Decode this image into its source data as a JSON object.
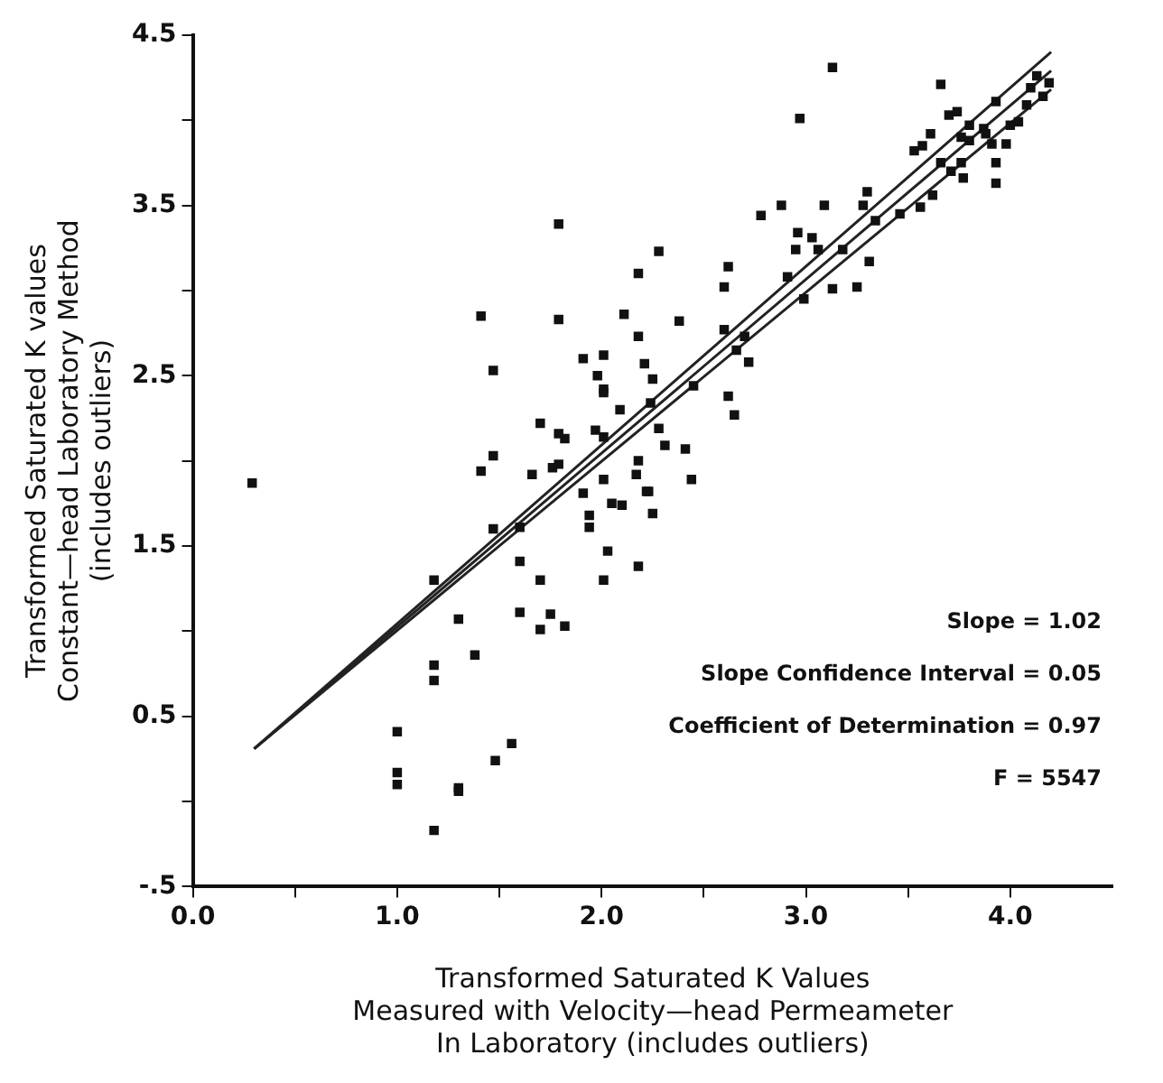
{
  "chart_data": {
    "type": "scatter",
    "xlabel": "Transformed Saturated K Values\nMeasured with Velocity—head Permeameter\nIn Laboratory (includes outliers)",
    "ylabel": "Transformed Saturated K values\nConstant—head Laboratory Method\n(includes outliers)",
    "xlim": [
      0,
      4.5
    ],
    "ylim": [
      -0.5,
      4.5
    ],
    "xticks": [
      {
        "value": 0,
        "label": "0.0"
      },
      {
        "value": 0.5,
        "label": null
      },
      {
        "value": 1,
        "label": "1.0"
      },
      {
        "value": 1.5,
        "label": null
      },
      {
        "value": 2,
        "label": "2.0"
      },
      {
        "value": 2.5,
        "label": null
      },
      {
        "value": 3,
        "label": "3.0"
      },
      {
        "value": 3.5,
        "label": null
      },
      {
        "value": 4,
        "label": "4.0"
      }
    ],
    "yticks": [
      {
        "value": -0.5,
        "label": "-.5"
      },
      {
        "value": 0,
        "label": null
      },
      0.5,
      {
        "value": 1,
        "label": null
      },
      1.5,
      {
        "value": 2,
        "label": null
      },
      2.5,
      {
        "value": 3,
        "label": null
      },
      3.5,
      {
        "value": 4,
        "label": null
      },
      4.5
    ],
    "grid": false,
    "legend": false,
    "marker": "square",
    "annotations": [
      "Slope = 1.02",
      "Slope Confidence Interval = 0.05",
      "Coefficient of Determination = 0.97",
      "F = 5547"
    ],
    "series": [
      {
        "color": "#111111",
        "x": [
          0.29,
          1.79,
          1.41,
          1.79,
          1.47,
          2.18,
          2.28,
          2.11,
          2.18,
          1.91,
          2.01,
          2.21,
          1.98,
          2.01,
          2.01,
          2.09,
          1.7,
          1.79,
          1.82,
          1.47,
          1.41,
          1.66,
          1.76,
          1.79,
          1.97,
          2.01,
          2.01,
          1.91,
          2.18,
          2.17,
          2.22,
          2.05,
          2.1,
          1.94,
          1.94,
          2.25,
          1.47,
          1.6,
          1.18,
          1.6,
          1.7,
          2.03,
          2.01,
          2.18,
          1.3,
          1.6,
          1.7,
          1.75,
          1.82,
          1.38,
          1.18,
          1.18,
          1.0,
          1.0,
          1.0,
          1.48,
          1.56,
          1.3,
          1.3,
          1.18,
          3.13,
          3.66,
          2.97,
          2.78,
          2.88,
          3.09,
          2.96,
          3.03,
          2.95,
          3.06,
          3.18,
          3.3,
          3.28,
          3.34,
          3.31,
          3.13,
          3.25,
          2.99,
          2.91,
          2.62,
          2.6,
          2.38,
          2.6,
          2.7,
          2.66,
          2.72,
          2.62,
          2.65,
          2.25,
          2.28,
          2.31,
          2.41,
          2.44,
          2.23,
          2.45,
          2.24,
          3.53,
          3.57,
          3.61,
          3.7,
          3.74,
          3.93,
          3.76,
          3.8,
          3.88,
          3.91,
          3.98,
          3.8,
          3.87,
          3.93,
          3.93,
          3.66,
          3.71,
          3.76,
          3.77,
          3.62,
          3.56,
          3.46,
          4.0,
          4.04,
          4.1,
          4.16,
          4.19,
          4.08,
          4.13
        ],
        "values": [
          1.87,
          3.39,
          2.85,
          2.83,
          2.53,
          3.1,
          3.23,
          2.86,
          2.73,
          2.6,
          2.62,
          2.57,
          2.5,
          2.42,
          2.4,
          2.3,
          2.22,
          2.16,
          2.13,
          2.03,
          1.94,
          1.92,
          1.96,
          1.98,
          2.18,
          2.14,
          1.89,
          1.81,
          2.0,
          1.92,
          1.82,
          1.75,
          1.74,
          1.68,
          1.61,
          1.69,
          1.6,
          1.61,
          1.3,
          1.41,
          1.3,
          1.47,
          1.3,
          1.38,
          1.07,
          1.11,
          1.01,
          1.1,
          1.03,
          0.86,
          0.8,
          0.71,
          0.41,
          0.17,
          0.1,
          0.24,
          0.34,
          0.08,
          0.06,
          -0.17,
          4.31,
          4.21,
          4.01,
          3.44,
          3.5,
          3.5,
          3.34,
          3.31,
          3.24,
          3.24,
          3.24,
          3.58,
          3.5,
          3.41,
          3.17,
          3.01,
          3.02,
          2.95,
          3.08,
          3.14,
          3.02,
          2.82,
          2.77,
          2.73,
          2.65,
          2.58,
          2.38,
          2.27,
          2.48,
          2.19,
          2.09,
          2.07,
          1.89,
          1.82,
          2.44,
          2.34,
          3.82,
          3.85,
          3.92,
          4.03,
          4.05,
          4.11,
          3.9,
          3.88,
          3.92,
          3.86,
          3.86,
          3.97,
          3.95,
          3.75,
          3.63,
          3.75,
          3.7,
          3.75,
          3.66,
          3.56,
          3.49,
          3.45,
          3.97,
          3.99,
          4.19,
          4.14,
          4.22,
          4.09,
          4.26
        ]
      },
      {
        "type": "line",
        "marker": "none",
        "color": "#222222",
        "x": [
          0.3,
          4.2
        ],
        "values": [
          0.31,
          4.4
        ]
      },
      {
        "type": "line",
        "marker": "none",
        "color": "#222222",
        "x": [
          0.3,
          4.2
        ],
        "values": [
          0.31,
          4.29
        ]
      },
      {
        "type": "line",
        "marker": "none",
        "color": "#222222",
        "x": [
          0.3,
          4.2
        ],
        "values": [
          0.31,
          4.18
        ]
      }
    ]
  }
}
